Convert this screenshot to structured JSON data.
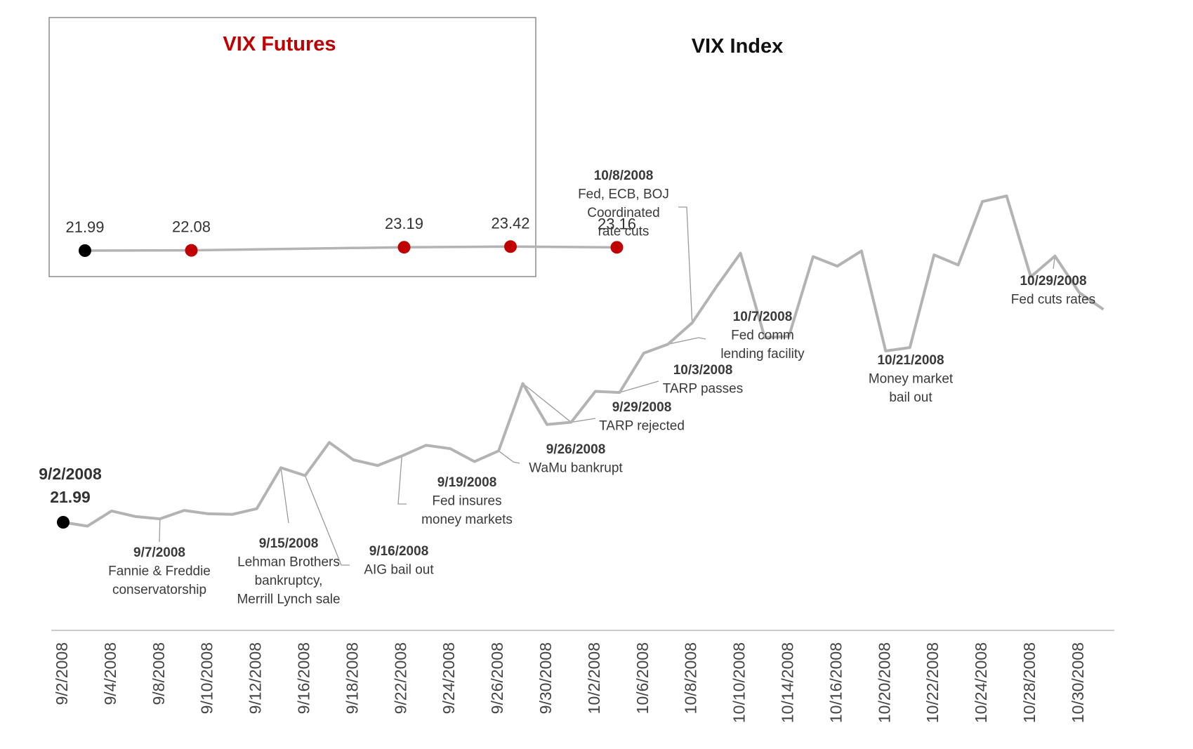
{
  "chart_data": [
    {
      "type": "line",
      "title": "VIX Index",
      "xlabel": "",
      "ylabel": "",
      "x_tick_labels": [
        "9/2/2008",
        "9/4/2008",
        "9/8/2008",
        "9/10/2008",
        "9/12/2008",
        "9/16/2008",
        "9/18/2008",
        "9/22/2008",
        "9/24/2008",
        "9/26/2008",
        "9/30/2008",
        "10/2/2008",
        "10/6/2008",
        "10/8/2008",
        "10/10/2008",
        "10/14/2008",
        "10/16/2008",
        "10/20/2008",
        "10/22/2008",
        "10/24/2008",
        "10/28/2008",
        "10/30/2008"
      ],
      "x": [
        "9/2/2008",
        "9/3/2008",
        "9/4/2008",
        "9/5/2008",
        "9/8/2008",
        "9/9/2008",
        "9/10/2008",
        "9/11/2008",
        "9/12/2008",
        "9/15/2008",
        "9/16/2008",
        "9/17/2008",
        "9/18/2008",
        "9/19/2008",
        "9/22/2008",
        "9/23/2008",
        "9/24/2008",
        "9/25/2008",
        "9/26/2008",
        "9/29/2008",
        "9/30/2008",
        "10/1/2008",
        "10/2/2008",
        "10/3/2008",
        "10/6/2008",
        "10/7/2008",
        "10/8/2008",
        "10/9/2008",
        "10/10/2008",
        "10/13/2008",
        "10/14/2008",
        "10/15/2008",
        "10/16/2008",
        "10/17/2008",
        "10/20/2008",
        "10/21/2008",
        "10/22/2008",
        "10/23/2008",
        "10/24/2008",
        "10/27/2008",
        "10/28/2008",
        "10/29/2008",
        "10/30/2008",
        "10/31/2008"
      ],
      "series": [
        {
          "values": [
            21.99,
            21.3,
            24.0,
            23.0,
            22.6,
            24.1,
            23.5,
            23.4,
            24.4,
            31.7,
            30.3,
            36.2,
            33.1,
            32.1,
            33.8,
            35.7,
            35.1,
            32.8,
            34.7,
            46.7,
            39.4,
            39.8,
            45.3,
            45.1,
            52.1,
            53.7,
            57.5,
            63.9,
            69.9,
            54.9,
            55.1,
            69.3,
            67.6,
            70.3,
            52.5,
            53.1,
            69.6,
            67.8,
            79.1,
            80.1,
            65.7,
            69.4,
            62.9,
            59.9
          ]
        }
      ],
      "annotations": [
        {
          "date": "9/7/2008",
          "text": [
            "Fannie & Freddie",
            "conservatorship"
          ]
        },
        {
          "date": "9/15/2008",
          "text": [
            "Lehman Brothers",
            "bankruptcy,",
            "Merrill Lynch sale"
          ]
        },
        {
          "date": "9/16/2008",
          "text": [
            "AIG bail out"
          ]
        },
        {
          "date": "9/19/2008",
          "text": [
            "Fed insures",
            "money markets"
          ]
        },
        {
          "date": "9/26/2008",
          "text": [
            "WaMu bankrupt"
          ]
        },
        {
          "date": "9/29/2008",
          "text": [
            "TARP rejected"
          ]
        },
        {
          "date": "10/3/2008",
          "text": [
            "TARP passes"
          ]
        },
        {
          "date": "10/7/2008",
          "text": [
            "Fed comm",
            "lending facility"
          ]
        },
        {
          "date": "10/8/2008",
          "text": [
            "Fed, ECB, BOJ",
            "Coordinated",
            "rate cuts"
          ]
        },
        {
          "date": "10/21/2008",
          "text": [
            "Money market",
            "bail out"
          ]
        },
        {
          "date": "10/29/2008",
          "text": [
            "Fed cuts rates"
          ]
        }
      ],
      "start_label": {
        "date": "9/2/2008",
        "value": "21.99"
      },
      "grid": false,
      "legend": "none"
    },
    {
      "type": "line",
      "title": "VIX Futures",
      "xlabel": "",
      "ylabel": "",
      "x": [
        0,
        1,
        3,
        4,
        5
      ],
      "values": [
        21.99,
        22.08,
        23.19,
        23.42,
        23.16
      ],
      "labels": [
        "21.99",
        "22.08",
        "23.19",
        "23.42",
        "23.16"
      ],
      "grid": false,
      "legend": "none"
    }
  ],
  "colors": {
    "line": "#b3b3b3",
    "leader": "#9a9a9a",
    "axis": "#cccccc",
    "start_marker": "#000000",
    "futures_marker": "#c00000",
    "futures_title": "#c00000",
    "inset_border": "#8c8c8c"
  }
}
